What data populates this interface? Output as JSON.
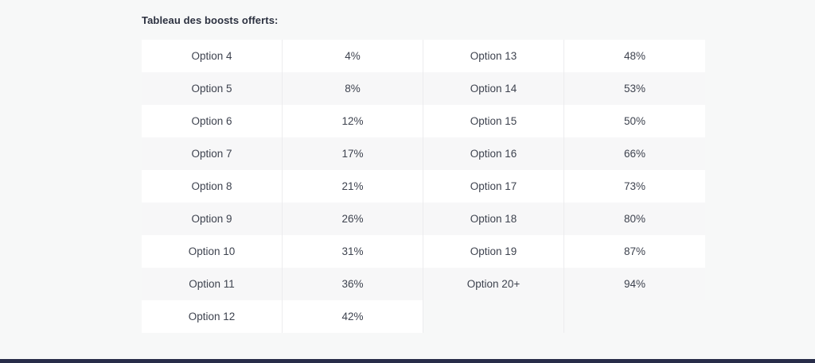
{
  "heading": "Tableau des boosts offerts:",
  "colors": {
    "page_background": "#f7f8f8",
    "row_odd_background": "#ffffff",
    "row_even_background": "#f7f7f8",
    "divider": "#ececee",
    "text": "#3e434f",
    "heading_text": "#2c3140",
    "bottom_bar": "#272c49"
  },
  "table": {
    "rows": [
      {
        "cells": [
          "Option 4",
          "4%",
          "Option 13",
          "48%"
        ]
      },
      {
        "cells": [
          "Option 5",
          "8%",
          "Option 14",
          "53%"
        ]
      },
      {
        "cells": [
          "Option 6",
          "12%",
          "Option 15",
          "50%"
        ]
      },
      {
        "cells": [
          "Option 7",
          "17%",
          "Option 16",
          "66%"
        ]
      },
      {
        "cells": [
          "Option 8",
          "21%",
          "Option 17",
          "73%"
        ]
      },
      {
        "cells": [
          "Option 9",
          "26%",
          "Option 18",
          "80%"
        ]
      },
      {
        "cells": [
          "Option 10",
          "31%",
          "Option 19",
          "87%"
        ]
      },
      {
        "cells": [
          "Option 11",
          "36%",
          "Option 20+",
          "94%"
        ]
      },
      {
        "cells": [
          "Option 12",
          "42%",
          "",
          ""
        ]
      }
    ]
  }
}
